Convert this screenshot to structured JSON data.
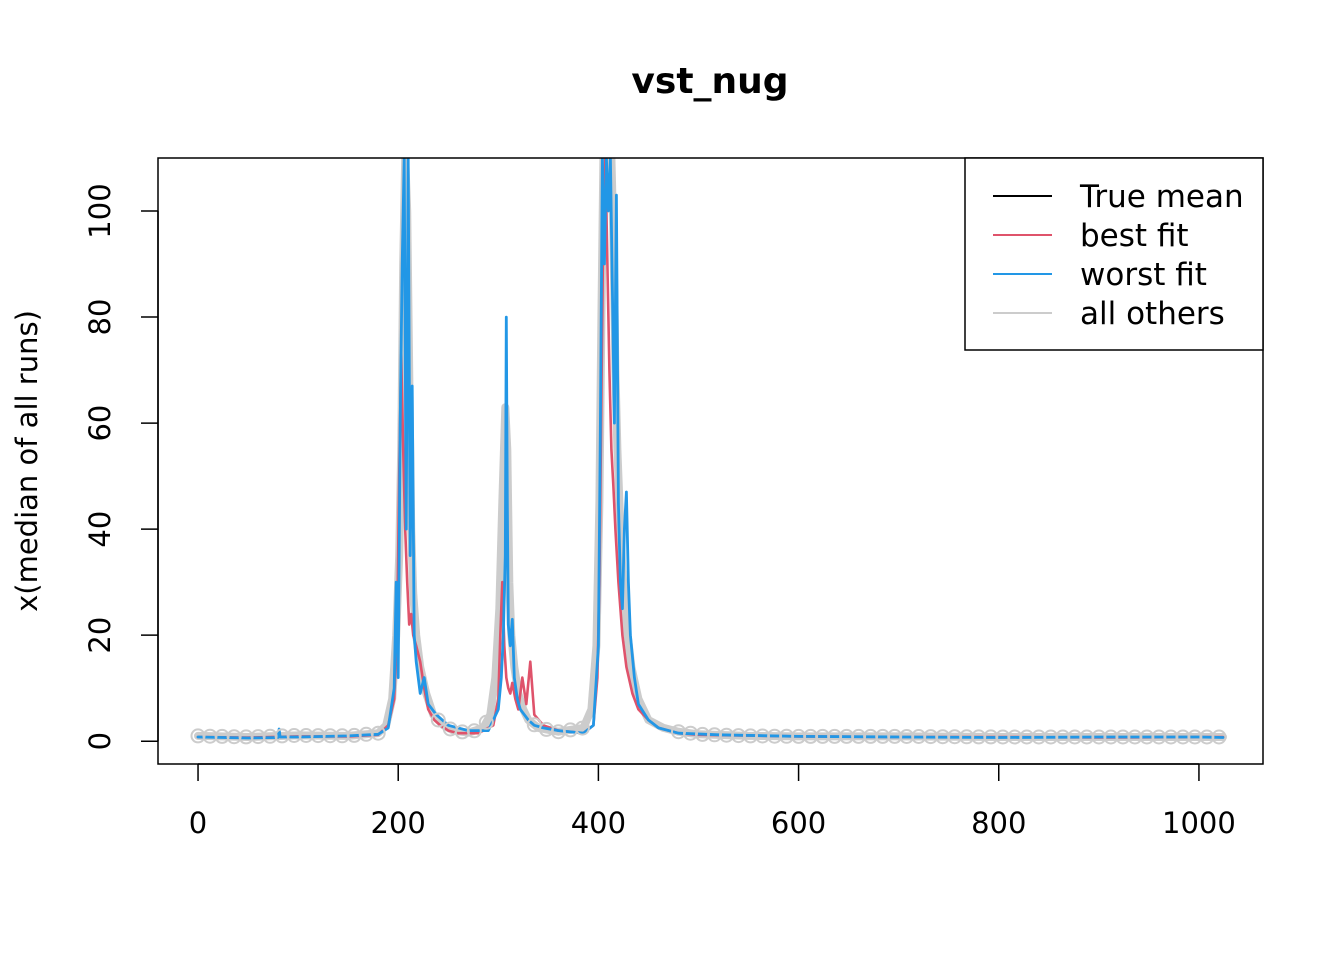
{
  "chart_data": {
    "type": "line",
    "title": "vst_nug",
    "xlabel": "",
    "ylabel": "x(median of all runs)",
    "xlim": [
      -40,
      1064
    ],
    "ylim": [
      -4.3,
      110
    ],
    "x_ticks": [
      0,
      200,
      400,
      600,
      800,
      1000
    ],
    "x_tick_labels": [
      "0",
      "200",
      "400",
      "600",
      "800",
      "1000"
    ],
    "y_ticks": [
      0,
      20,
      40,
      60,
      80,
      100
    ],
    "y_tick_labels": [
      "0",
      "20",
      "40",
      "60",
      "80",
      "100"
    ],
    "legend_position": "top-right",
    "legend": [
      {
        "label": "True mean",
        "color": "#000000"
      },
      {
        "label": "best fit",
        "color": "#DF536B"
      },
      {
        "label": "worst fit",
        "color": "#2297E6"
      },
      {
        "label": "all others",
        "color": "#CCCCCC"
      }
    ],
    "series": [
      {
        "name": "all others",
        "color": "#CCCCCC",
        "x": [
          0,
          50,
          100,
          150,
          180,
          188,
          194,
          198,
          201,
          203,
          205,
          207,
          209,
          211,
          213,
          215,
          218,
          222,
          228,
          235,
          245,
          255,
          270,
          285,
          292,
          297,
          301,
          304,
          307,
          309,
          311,
          313,
          316,
          320,
          325,
          330,
          340,
          360,
          385,
          393,
          398,
          401,
          403,
          405,
          407,
          409,
          411,
          413,
          415,
          417,
          419,
          421,
          424,
          428,
          433,
          440,
          450,
          465,
          480,
          500,
          550,
          600,
          700,
          800,
          900,
          1000,
          1024
        ],
        "y": [
          1,
          0.8,
          1.1,
          1,
          1.5,
          3,
          8,
          20,
          35,
          55,
          90,
          110,
          100,
          70,
          40,
          28,
          20,
          14,
          9,
          5,
          3,
          2,
          1.6,
          2.5,
          5,
          12,
          25,
          45,
          63,
          55,
          30,
          20,
          14,
          9,
          6,
          4,
          2.5,
          1.8,
          2.5,
          6,
          18,
          45,
          80,
          110,
          110,
          110,
          110,
          110,
          95,
          70,
          55,
          45,
          32,
          22,
          14,
          8,
          4,
          2.5,
          1.8,
          1.3,
          1,
          0.9,
          0.9,
          0.8,
          0.8,
          0.8,
          0.8
        ]
      },
      {
        "name": "best fit",
        "color": "#DF536B",
        "x": [
          0,
          50,
          100,
          150,
          180,
          190,
          196,
          199,
          201,
          203,
          205,
          207,
          209,
          211,
          213,
          215,
          218,
          222,
          226,
          230,
          236,
          242,
          250,
          260,
          280,
          295,
          300,
          302,
          304,
          306,
          308,
          310,
          312,
          314,
          317,
          320,
          324,
          328,
          332,
          336,
          345,
          360,
          385,
          395,
          399,
          401,
          403,
          405,
          407,
          409,
          411,
          413,
          415,
          417,
          420,
          424,
          428,
          434,
          440,
          450,
          460,
          480,
          500,
          600,
          700,
          800,
          900,
          1000,
          1024
        ],
        "y": [
          0.8,
          0.7,
          0.9,
          0.9,
          1.2,
          3,
          8,
          22,
          50,
          73,
          55,
          40,
          30,
          22,
          24,
          20,
          18,
          15,
          10,
          6,
          4,
          3,
          2,
          1.5,
          1.5,
          3,
          8,
          20,
          30,
          18,
          12,
          10,
          9,
          11,
          8,
          6,
          12,
          7,
          15,
          5,
          3,
          2,
          1.5,
          3,
          12,
          30,
          65,
          100,
          110,
          90,
          70,
          55,
          48,
          40,
          30,
          20,
          14,
          9,
          6,
          4,
          2.5,
          1.5,
          1.2,
          0.9,
          0.8,
          0.8,
          0.7,
          0.8,
          0.8
        ]
      },
      {
        "name": "worst fit",
        "color": "#2297E6",
        "x": [
          0,
          50,
          80,
          81,
          82,
          100,
          150,
          180,
          190,
          196,
          198,
          200,
          202,
          204,
          206,
          208,
          210,
          212,
          214,
          216,
          218,
          222,
          226,
          230,
          238,
          250,
          270,
          290,
          300,
          303,
          305,
          307,
          308,
          309,
          310,
          312,
          314,
          316,
          319,
          322,
          326,
          330,
          336,
          345,
          360,
          385,
          395,
          400,
          402,
          404,
          406,
          408,
          410,
          412,
          414,
          416,
          418,
          420,
          422,
          424,
          426,
          428,
          430,
          432,
          436,
          440,
          450,
          460,
          480,
          520,
          600,
          700,
          800,
          900,
          1000,
          1024
        ],
        "y": [
          0.8,
          0.6,
          0.7,
          2.3,
          0.8,
          0.8,
          1,
          1.3,
          2.5,
          10,
          30,
          12,
          60,
          90,
          110,
          40,
          110,
          35,
          67,
          20,
          15,
          9,
          12,
          7,
          5,
          3,
          2,
          2,
          6,
          12,
          20,
          35,
          80,
          45,
          22,
          18,
          23,
          12,
          8,
          6,
          5,
          4,
          3,
          2.5,
          2,
          1.5,
          3,
          18,
          60,
          110,
          90,
          110,
          100,
          110,
          85,
          60,
          103,
          45,
          30,
          25,
          40,
          47,
          30,
          20,
          12,
          7,
          4,
          2.5,
          1.5,
          1.2,
          0.9,
          0.8,
          0.7,
          0.8,
          0.8,
          0.7
        ]
      }
    ]
  }
}
